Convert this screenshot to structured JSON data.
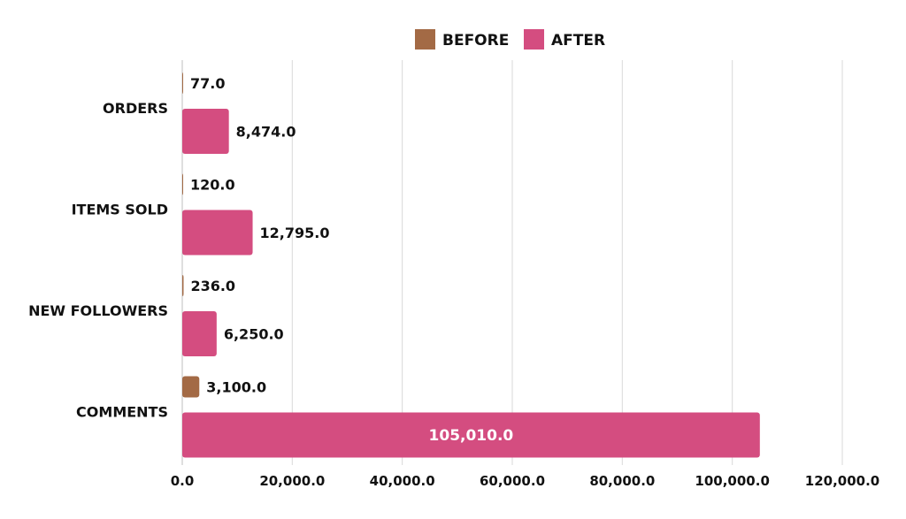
{
  "chart_data": {
    "type": "bar",
    "orientation": "horizontal",
    "categories": [
      "ORDERS",
      "ITEMS SOLD",
      "NEW FOLLOWERS",
      "COMMENTS"
    ],
    "series": [
      {
        "name": "BEFORE",
        "color": "#a36a45",
        "values": [
          77.0,
          120.0,
          236.0,
          3100.0
        ],
        "labels": [
          "77.0",
          "120.0",
          "236.0",
          "3,100.0"
        ]
      },
      {
        "name": "AFTER",
        "color": "#d44d80",
        "values": [
          8474.0,
          12795.0,
          6250.0,
          105010.0
        ],
        "labels": [
          "8,474.0",
          "12,795.0",
          "6,250.0",
          "105,010.0"
        ]
      }
    ],
    "xlim": [
      0,
      120000
    ],
    "xticks": [
      0,
      20000,
      40000,
      60000,
      80000,
      100000,
      120000
    ],
    "xtick_labels": [
      "0.0",
      "20,000.0",
      "40,000.0",
      "60,000.0",
      "80,000.0",
      "100,000.0",
      "120,000.0"
    ],
    "grid": true,
    "legend": "top-center",
    "title": "",
    "xlabel": "",
    "ylabel": ""
  }
}
